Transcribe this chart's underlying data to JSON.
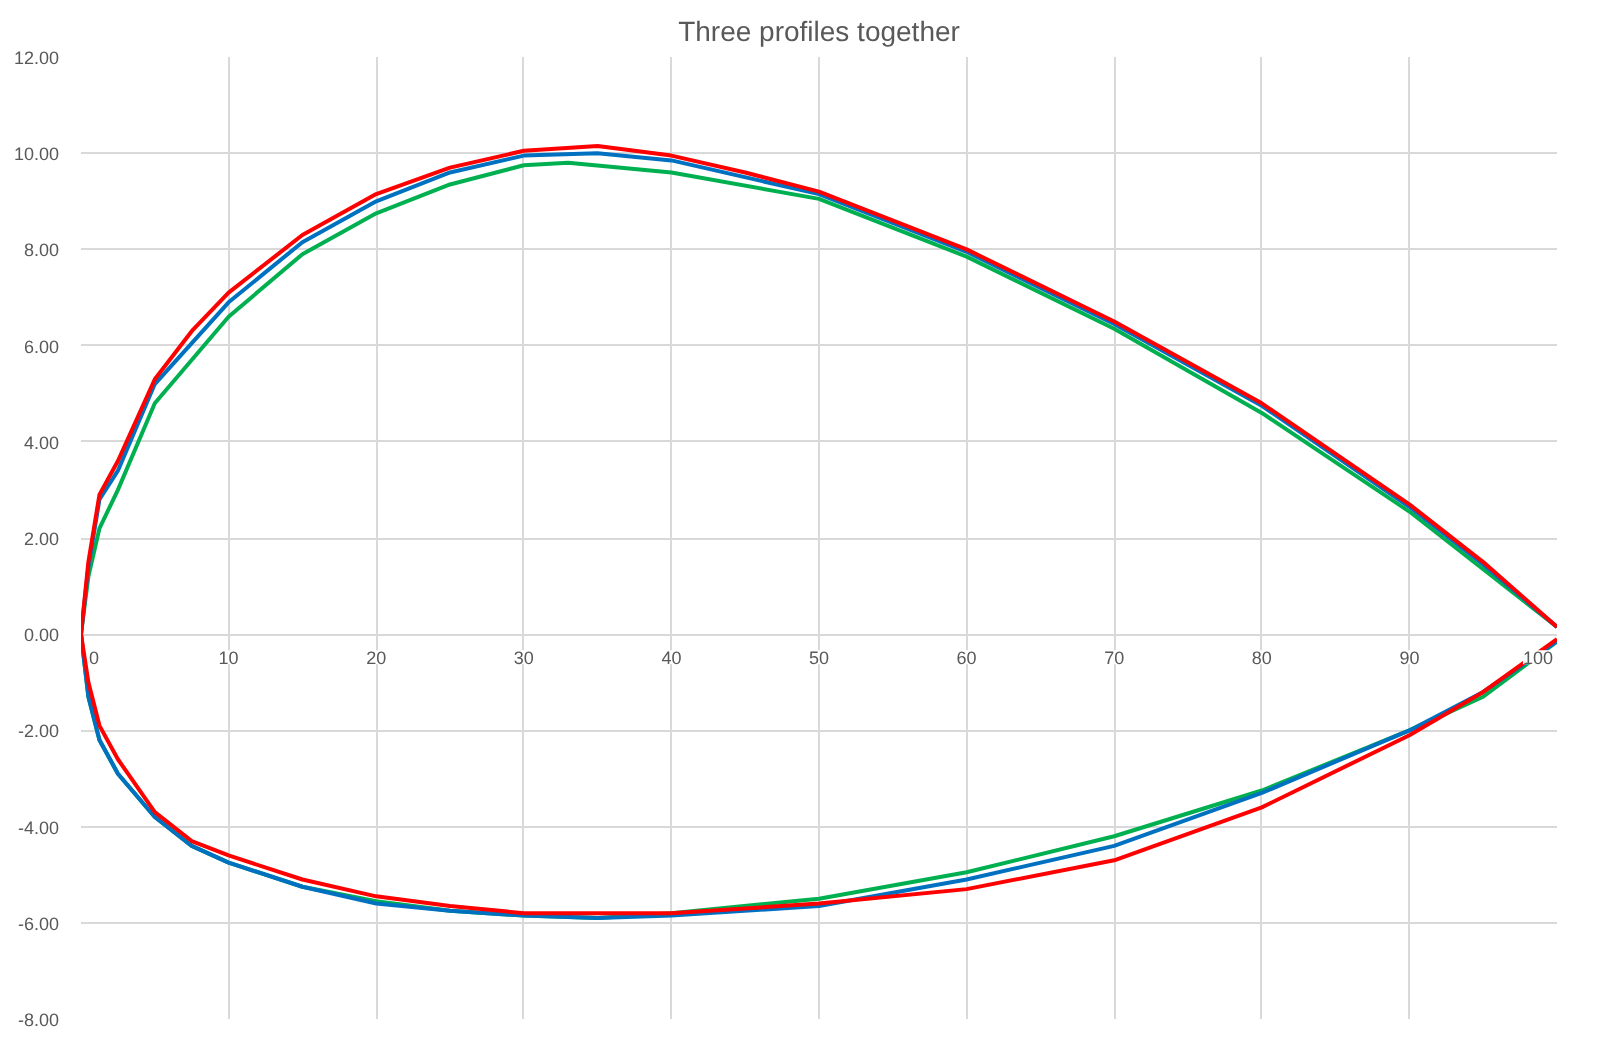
{
  "chart_data": {
    "type": "line",
    "title": "Three profiles together",
    "xlim": [
      0,
      100
    ],
    "ylim": [
      -8,
      12
    ],
    "xticks": [
      0,
      10,
      20,
      30,
      40,
      50,
      60,
      70,
      80,
      90,
      100
    ],
    "yticks": [
      {
        "value": -8,
        "label": "-8.00"
      },
      {
        "value": -6,
        "label": "-6.00"
      },
      {
        "value": -4,
        "label": "-4.00"
      },
      {
        "value": -2,
        "label": "-2.00"
      },
      {
        "value": 0,
        "label": "0.00"
      },
      {
        "value": 2,
        "label": "2.00"
      },
      {
        "value": 4,
        "label": "4.00"
      },
      {
        "value": 6,
        "label": "6.00"
      },
      {
        "value": 8,
        "label": "8.00"
      },
      {
        "value": 10,
        "label": "10.00"
      },
      {
        "value": 12,
        "label": "12.00"
      }
    ],
    "grid": true,
    "marker": "none",
    "line_style": "solid",
    "series": [
      {
        "color": "#00b050",
        "x": [
          100,
          95,
          90,
          80,
          70,
          60,
          50,
          40,
          33,
          30,
          25,
          20,
          15,
          10,
          5,
          2.5,
          1.25,
          0.5,
          0,
          0.5,
          1.25,
          2.5,
          5,
          7.5,
          10,
          15,
          20,
          25,
          30,
          35,
          40,
          50,
          60,
          70,
          80,
          90,
          95,
          100
        ],
        "values": [
          0.15,
          1.35,
          2.55,
          4.6,
          6.35,
          7.85,
          9.05,
          9.6,
          9.8,
          9.75,
          9.35,
          8.75,
          7.9,
          6.6,
          4.8,
          3.0,
          2.2,
          1.2,
          0,
          -1.3,
          -2.2,
          -2.9,
          -3.8,
          -4.4,
          -4.75,
          -5.25,
          -5.55,
          -5.75,
          -5.85,
          -5.9,
          -5.8,
          -5.5,
          -4.95,
          -4.2,
          -3.25,
          -2.0,
          -1.3,
          -0.15
        ]
      },
      {
        "color": "#0070c0",
        "x": [
          100,
          95,
          90,
          80,
          70,
          60,
          50,
          40,
          35,
          30,
          25,
          20,
          15,
          10,
          5,
          2.5,
          1.25,
          0.5,
          0,
          0.5,
          1.25,
          2.5,
          5,
          7.5,
          10,
          15,
          20,
          25,
          30,
          35,
          40,
          50,
          60,
          70,
          80,
          90,
          95,
          100
        ],
        "values": [
          0.15,
          1.45,
          2.65,
          4.75,
          6.45,
          7.95,
          9.15,
          9.85,
          10.0,
          9.95,
          9.6,
          9.0,
          8.15,
          6.9,
          5.2,
          3.4,
          2.8,
          1.4,
          0,
          -1.3,
          -2.2,
          -2.9,
          -3.8,
          -4.4,
          -4.75,
          -5.25,
          -5.6,
          -5.75,
          -5.85,
          -5.9,
          -5.85,
          -5.65,
          -5.1,
          -4.4,
          -3.3,
          -2.0,
          -1.2,
          -0.15
        ]
      },
      {
        "color": "#ff0000",
        "x": [
          100,
          95,
          90,
          80,
          70,
          60,
          50,
          45,
          40,
          35,
          30,
          25,
          20,
          15,
          10,
          7.5,
          5,
          2.5,
          1.25,
          0.5,
          0,
          0.5,
          1.25,
          2.5,
          5,
          7.5,
          10,
          15,
          20,
          25,
          30,
          40,
          50,
          60,
          70,
          80,
          90,
          95,
          100
        ],
        "values": [
          0.15,
          1.5,
          2.7,
          4.8,
          6.5,
          8.0,
          9.2,
          9.6,
          9.95,
          10.15,
          10.05,
          9.7,
          9.15,
          8.3,
          7.1,
          6.3,
          5.3,
          3.6,
          2.9,
          1.5,
          0,
          -1.0,
          -1.9,
          -2.6,
          -3.7,
          -4.3,
          -4.6,
          -5.1,
          -5.45,
          -5.65,
          -5.8,
          -5.8,
          -5.6,
          -5.3,
          -4.7,
          -3.6,
          -2.1,
          -1.2,
          -0.1
        ]
      }
    ]
  }
}
